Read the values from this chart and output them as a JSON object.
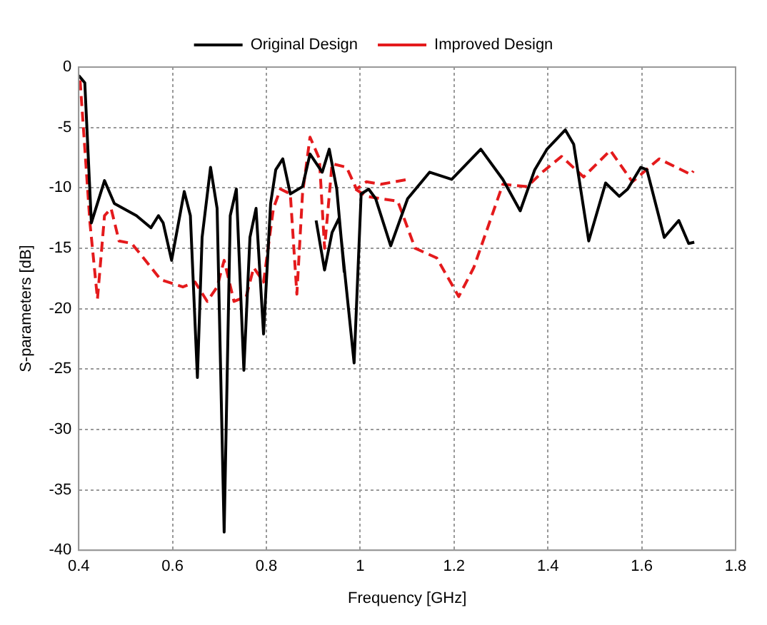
{
  "chart_data": {
    "type": "line",
    "xlabel": "Frequency [GHz]",
    "ylabel": "S-parameters [dB]",
    "xlim": [
      0.4,
      1.8
    ],
    "xticks": [
      0.4,
      0.6,
      0.8,
      1,
      1.2,
      1.4,
      1.6,
      1.8
    ],
    "ylim": [
      -40,
      0
    ],
    "yticks": [
      -40,
      -35,
      -30,
      -25,
      -20,
      -15,
      -10,
      -5,
      0
    ],
    "grid": true,
    "legend": "top",
    "marker": "none",
    "series": [
      {
        "name": "Original Design",
        "color": "#000000",
        "line_style": "solid",
        "x": [
          0.4,
          0.413,
          0.427,
          0.455,
          0.476,
          0.523,
          0.554,
          0.57,
          0.58,
          0.598,
          0.625,
          0.638,
          0.653,
          0.663,
          0.681,
          0.695,
          0.71,
          0.723,
          0.736,
          0.752,
          0.765,
          0.778,
          0.794,
          0.809,
          0.82,
          0.835,
          0.851,
          0.877,
          0.893,
          0.919,
          0.934,
          0.95,
          0.966,
          null,
          0.906,
          0.924,
          0.94,
          0.955,
          0.987,
          1.002,
          1.018,
          1.033,
          1.065,
          1.101,
          1.148,
          1.195,
          1.257,
          1.304,
          1.341,
          1.372,
          1.398,
          1.437,
          1.455,
          1.487,
          1.523,
          1.552,
          1.57,
          1.598,
          1.611,
          1.648,
          1.679,
          1.7,
          1.712
        ],
        "values": [
          -0.7,
          -1.3,
          -12.9,
          -9.4,
          -11.3,
          -12.3,
          -13.3,
          -12.3,
          -12.9,
          -16,
          -10.3,
          -12.3,
          -25.7,
          -14.1,
          -8.3,
          -11.7,
          -38.5,
          -12.3,
          -10.1,
          -25.1,
          -14.1,
          -11.7,
          -22.1,
          -11.3,
          -8.5,
          -7.6,
          -10.5,
          -9.9,
          -7.2,
          -8.7,
          -6.8,
          -10.1,
          -17,
          null,
          -12.7,
          -16.8,
          -13.7,
          -12.5,
          -24.5,
          -10.5,
          -10.1,
          -10.9,
          -14.8,
          -10.9,
          -8.7,
          -9.3,
          -6.8,
          -9.3,
          -11.9,
          -8.5,
          -6.8,
          -5.2,
          -6.4,
          -14.4,
          -9.6,
          -10.7,
          -10.1,
          -8.3,
          -8.5,
          -14.1,
          -12.7,
          -14.6,
          -14.5
        ]
      },
      {
        "name": "Improved Design",
        "color": "#e41a1c",
        "line_style": "dashed",
        "x": [
          0.403,
          0.424,
          0.44,
          0.455,
          0.469,
          0.486,
          0.513,
          0.538,
          0.575,
          0.622,
          0.648,
          0.674,
          0.695,
          0.71,
          0.731,
          0.757,
          0.773,
          0.794,
          0.815,
          0.83,
          0.851,
          0.865,
          0.877,
          0.893,
          0.913,
          0.924,
          0.94,
          0.971,
          0.992,
          1.013,
          1.044,
          1.101,
          null,
          0.99,
          1.013,
          1.044,
          1.08,
          1.117,
          1.163,
          1.21,
          1.242,
          1.304,
          1.356,
          1.388,
          1.429,
          1.476,
          1.533,
          1.58,
          1.637,
          1.705,
          1.71
        ],
        "values": [
          -1.1,
          -12.9,
          -19.2,
          -12.3,
          -11.7,
          -14.4,
          -14.6,
          -15.8,
          -17.6,
          -18.2,
          -17.8,
          -19.4,
          -18.2,
          -16,
          -19.4,
          -19,
          -16.6,
          -17.8,
          -11.7,
          -10.1,
          -10.5,
          -18.8,
          -10.5,
          -5.8,
          -7.6,
          -15,
          -8,
          -8.3,
          -10.1,
          -9.5,
          -9.7,
          -9.3,
          null,
          -10.1,
          -10.7,
          -10.9,
          -11.1,
          -15,
          -15.8,
          -19,
          -16.6,
          -9.7,
          -9.9,
          -8.7,
          -7.4,
          -9.1,
          -6.9,
          -9.5,
          -7.6,
          -8.9,
          -8.6
        ]
      }
    ]
  }
}
